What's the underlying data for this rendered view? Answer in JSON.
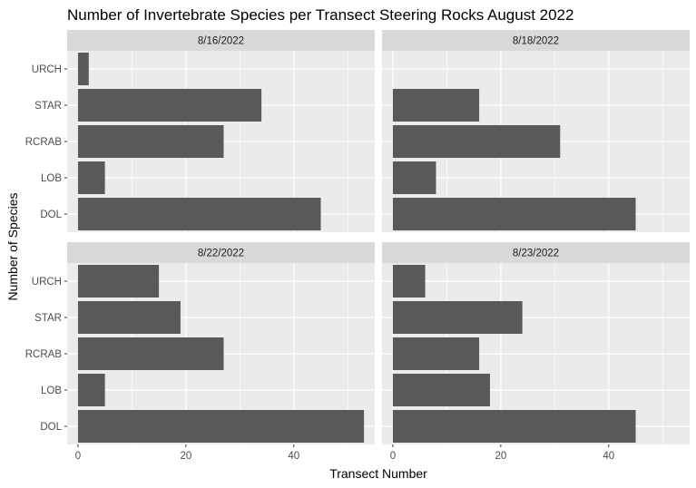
{
  "chart_data": {
    "type": "bar",
    "orientation": "horizontal",
    "title": "Number of Invertebrate Species per Transect Steering Rocks August 2022",
    "xlabel": "Transect Number",
    "ylabel": "Number of Species",
    "categories": [
      "URCH",
      "STAR",
      "RCRAB",
      "LOB",
      "DOL"
    ],
    "xlim": [
      -2,
      55
    ],
    "xticks": [
      0,
      20,
      40
    ],
    "bar_color": "#595959",
    "panel_color": "#ebebeb",
    "strip_color": "#d9d9d9",
    "grid": true,
    "facets": [
      {
        "label": "8/16/2022",
        "values": [
          2,
          34,
          27,
          5,
          45
        ]
      },
      {
        "label": "8/18/2022",
        "values": [
          0,
          16,
          31,
          8,
          45
        ]
      },
      {
        "label": "8/22/2022",
        "values": [
          15,
          19,
          27,
          5,
          53
        ]
      },
      {
        "label": "8/23/2022",
        "values": [
          6,
          24,
          16,
          18,
          45
        ]
      }
    ]
  }
}
